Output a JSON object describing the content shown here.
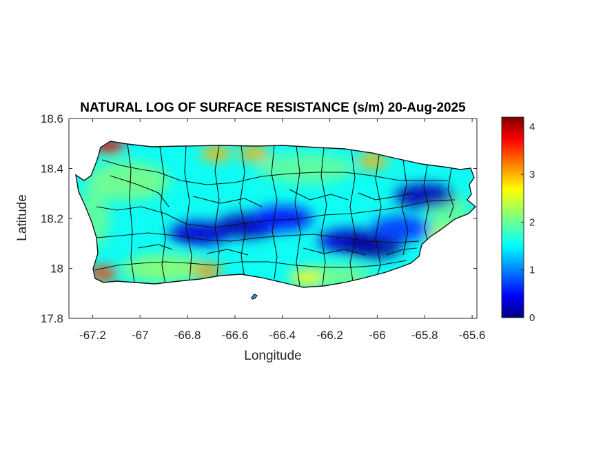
{
  "chart_data": {
    "type": "heatmap",
    "title": "NATURAL LOG OF SURFACE RESISTANCE (s/m) 20-Aug-2025",
    "xlabel": "Longitude",
    "ylabel": "Latitude",
    "xlim": [
      -67.3,
      -65.58
    ],
    "ylim": [
      17.8,
      18.6
    ],
    "x_ticks": [
      -67.2,
      -67,
      -66.8,
      -66.6,
      -66.4,
      -66.2,
      -66,
      -65.8,
      -65.6
    ],
    "x_tick_labels": [
      "-67.2",
      "-67",
      "-66.8",
      "-66.6",
      "-66.4",
      "-66.2",
      "-66",
      "-65.8",
      "-65.6"
    ],
    "y_ticks": [
      17.8,
      18,
      18.2,
      18.4,
      18.6
    ],
    "y_tick_labels": [
      "17.8",
      "18",
      "18.2",
      "18.4",
      "18.6"
    ],
    "grid": false,
    "colormap": "jet",
    "colorbar": {
      "range": [
        0,
        4.2
      ],
      "ticks": [
        0,
        1,
        2,
        3,
        4
      ],
      "tick_labels": [
        "0",
        "1",
        "2",
        "3",
        "4"
      ]
    },
    "region": "Puerto Rico",
    "overlay": "municipality boundaries",
    "high_value_areas": [
      {
        "lon": -67.13,
        "lat": 18.49,
        "value": 3.8
      },
      {
        "lon": -67.16,
        "lat": 17.98,
        "value": 3.5
      },
      {
        "lon": -66.72,
        "lat": 17.99,
        "value": 3.1
      },
      {
        "lon": -66.68,
        "lat": 18.46,
        "value": 3.0
      },
      {
        "lon": -66.52,
        "lat": 18.46,
        "value": 3.0
      },
      {
        "lon": -66.02,
        "lat": 18.43,
        "value": 3.0
      },
      {
        "lon": -66.3,
        "lat": 17.96,
        "value": 2.7
      },
      {
        "lon": -65.72,
        "lat": 18.13,
        "value": 2.5
      }
    ],
    "low_value_areas": [
      {
        "lon": -66.75,
        "lat": 18.14,
        "value": 0.3
      },
      {
        "lon": -66.55,
        "lat": 18.17,
        "value": 0.2
      },
      {
        "lon": -66.4,
        "lat": 18.2,
        "value": 0.5
      },
      {
        "lon": -66.12,
        "lat": 18.11,
        "value": 0.3
      },
      {
        "lon": -66.02,
        "lat": 18.09,
        "value": 0.1
      },
      {
        "lon": -65.8,
        "lat": 18.29,
        "value": 0.2
      },
      {
        "lon": -65.9,
        "lat": 18.16,
        "value": 0.7
      }
    ]
  }
}
